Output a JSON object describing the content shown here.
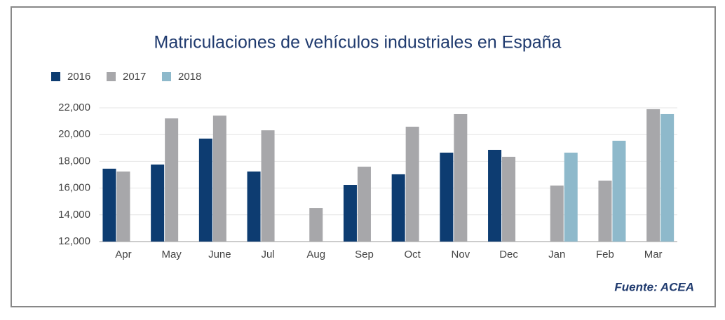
{
  "chart_data": {
    "type": "bar",
    "title": "Matriculaciones de vehículos industriales en España",
    "source": "Fuente: ACEA",
    "categories": [
      "Apr",
      "May",
      "June",
      "Jul",
      "Aug",
      "Sep",
      "Oct",
      "Nov",
      "Dec",
      "Jan",
      "Feb",
      "Mar"
    ],
    "series": [
      {
        "name": "2016",
        "color": "#0d3c71",
        "values": [
          17450,
          17760,
          19700,
          17240,
          null,
          16240,
          17030,
          18650,
          18860,
          null,
          null,
          null
        ]
      },
      {
        "name": "2017",
        "color": "#a7a7aa",
        "values": [
          17240,
          21210,
          21420,
          20320,
          14510,
          17600,
          20590,
          21530,
          18340,
          16190,
          16560,
          21900
        ]
      },
      {
        "name": "2018",
        "color": "#8eb9cb",
        "values": [
          null,
          null,
          null,
          null,
          null,
          null,
          null,
          null,
          null,
          18650,
          19540,
          21530
        ]
      }
    ],
    "ylim": [
      12000,
      22000
    ],
    "yticks": [
      {
        "value": 12000,
        "label": "12,000"
      },
      {
        "value": 14000,
        "label": "14,000"
      },
      {
        "value": 16000,
        "label": "16,000"
      },
      {
        "value": 18000,
        "label": "18,000"
      },
      {
        "value": 20000,
        "label": "20,000"
      },
      {
        "value": 22000,
        "label": "22,000"
      }
    ],
    "grid": true,
    "legend": "top-left"
  }
}
